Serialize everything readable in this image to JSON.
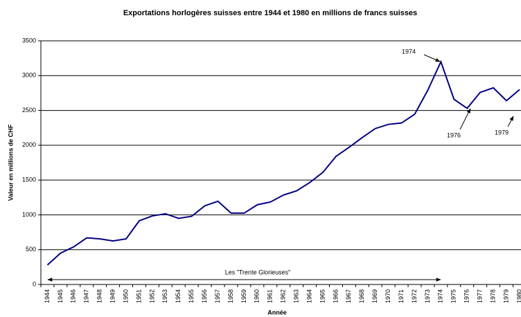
{
  "chart_data": {
    "type": "line",
    "title": "Exportations horlogères suisses entre 1944 et 1980 en millions de francs suisses",
    "y_label": "Valeur en millions de CHF",
    "x_label": "Année",
    "categories": [
      "1944",
      "1945",
      "1946",
      "1947",
      "1948",
      "1949",
      "1950",
      "1951",
      "1952",
      "1953",
      "1954",
      "1955",
      "1956",
      "1957",
      "1958",
      "1959",
      "1960",
      "1961",
      "1962",
      "1963",
      "1964",
      "1965",
      "1966",
      "1967",
      "1968",
      "1969",
      "1970",
      "1971",
      "1972",
      "1973",
      "1974",
      "1975",
      "1976",
      "1977",
      "1978",
      "1979",
      "1980"
    ],
    "series": [
      {
        "name": "Exportations",
        "color": "#000080",
        "values": [
          280,
          450,
          540,
          670,
          655,
          625,
          655,
          915,
          985,
          1015,
          950,
          980,
          1130,
          1195,
          1025,
          1025,
          1145,
          1185,
          1285,
          1345,
          1465,
          1610,
          1840,
          1970,
          2110,
          2240,
          2300,
          2320,
          2445,
          2790,
          3200,
          2660,
          2530,
          2760,
          2825,
          2640,
          2800
        ]
      }
    ],
    "ylim": [
      0,
      3500
    ],
    "yticks": [
      0,
      500,
      1000,
      1500,
      2000,
      2500,
      3000,
      3500
    ],
    "grid": true,
    "annotations": [
      "1974",
      "1976",
      "1979",
      "Les \"Trente Glorieuses\""
    ]
  }
}
